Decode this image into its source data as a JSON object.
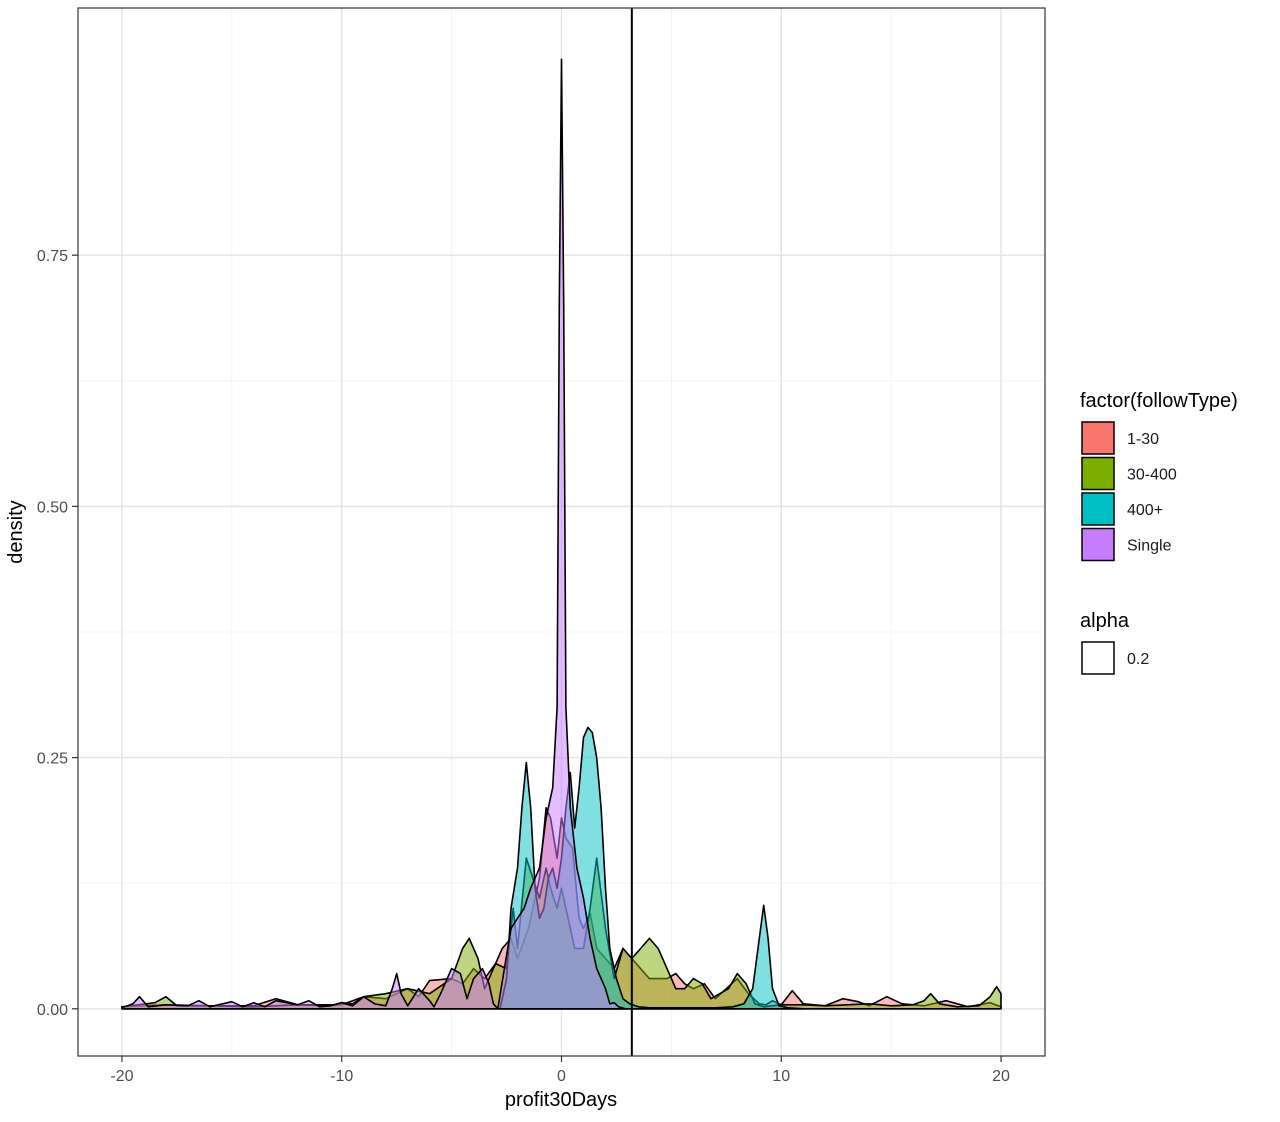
{
  "chart_data": {
    "type": "area",
    "subtype": "density",
    "title": "",
    "xlabel": "profit30Days",
    "ylabel": "density",
    "xlim": [
      -22,
      22
    ],
    "ylim": [
      -0.047,
      0.996
    ],
    "x_ticks": [
      -20,
      -10,
      0,
      10,
      20
    ],
    "x_tick_labels": [
      "-20",
      "-10",
      "0",
      "10",
      "20"
    ],
    "y_ticks": [
      0,
      0.25,
      0.5,
      0.75
    ],
    "y_tick_labels": [
      "0.00",
      "0.25",
      "0.50",
      "0.75"
    ],
    "grid": true,
    "theme": "bw",
    "vline": {
      "x": 3.2,
      "color": "#000000"
    },
    "legend": {
      "position": "right",
      "fill_title": "factor(followType)",
      "alpha_title": "alpha",
      "alpha_label": "0.2"
    },
    "series": [
      {
        "name": "1-30",
        "color": "#F8766D",
        "x": [
          -20,
          -18,
          -16,
          -14,
          -13,
          -12,
          -10,
          -9,
          -8,
          -7,
          -6.5,
          -6,
          -5,
          -4.5,
          -4,
          -3.5,
          -3,
          -2.7,
          -2.3,
          -2,
          -1.5,
          -1,
          -0.7,
          -0.5,
          -0.2,
          0,
          0.2,
          0.5,
          0.8,
          1,
          1.3,
          1.6,
          2,
          2.4,
          2.8,
          3.2,
          3.6,
          4,
          4.4,
          4.8,
          5.2,
          5.6,
          6,
          6.5,
          7,
          7.5,
          8,
          8.5,
          9,
          9.3,
          9.6,
          10,
          10.5,
          11,
          12,
          12.8,
          13.5,
          14,
          14.8,
          15.5,
          16.5,
          17.5,
          18.5,
          19.5,
          20
        ],
        "y": [
          0.002,
          0.004,
          0.003,
          0.003,
          0.01,
          0.004,
          0.004,
          0.012,
          0.01,
          0.02,
          0.012,
          0.028,
          0.03,
          0.025,
          0.04,
          0.03,
          0.045,
          0.06,
          0.07,
          0.05,
          0.08,
          0.13,
          0.2,
          0.19,
          0.15,
          0.19,
          0.17,
          0.16,
          0.09,
          0.08,
          0.095,
          0.06,
          0.05,
          0.04,
          0.06,
          0.05,
          0.04,
          0.03,
          0.03,
          0.03,
          0.035,
          0.025,
          0.02,
          0.025,
          0.01,
          0.02,
          0.03,
          0.015,
          0.005,
          0.004,
          0.008,
          0.004,
          0.018,
          0.005,
          0.003,
          0.01,
          0.007,
          0.003,
          0.012,
          0.005,
          0.003,
          0.008,
          0.002,
          0.006,
          0.002
        ]
      },
      {
        "name": "30-400",
        "color": "#7CAE00",
        "x": [
          -20,
          -18.5,
          -18,
          -17.5,
          -16,
          -14,
          -12,
          -10.5,
          -10,
          -9.5,
          -9,
          -8,
          -7,
          -6,
          -5,
          -4.5,
          -4.2,
          -3.8,
          -3.5,
          -3,
          -2.5,
          -2.2,
          -2,
          -1.6,
          -1.3,
          -1,
          -0.7,
          -0.5,
          -0.2,
          0,
          0.3,
          0.6,
          1,
          1.3,
          1.6,
          2,
          2.4,
          2.8,
          3.2,
          3.6,
          4,
          4.4,
          4.8,
          5.2,
          5.6,
          6,
          6.4,
          6.8,
          7.2,
          7.6,
          8,
          8.4,
          8.8,
          9.2,
          9.6,
          10,
          11,
          12,
          13,
          14,
          15,
          16,
          16.5,
          16.8,
          17.2,
          18,
          19,
          19.5,
          19.8,
          20
        ],
        "y": [
          0.002,
          0.006,
          0.012,
          0.003,
          0.003,
          0.002,
          0.004,
          0.003,
          0.006,
          0.005,
          0.012,
          0.015,
          0.02,
          0.015,
          0.03,
          0.06,
          0.07,
          0.05,
          0.02,
          0.045,
          0.04,
          0.1,
          0.06,
          0.15,
          0.13,
          0.11,
          0.14,
          0.12,
          0.1,
          0.12,
          0.09,
          0.06,
          0.06,
          0.1,
          0.15,
          0.08,
          0.03,
          0.06,
          0.05,
          0.06,
          0.07,
          0.06,
          0.04,
          0.02,
          0.02,
          0.03,
          0.025,
          0.01,
          0.015,
          0.02,
          0.035,
          0.025,
          0.005,
          0.002,
          0.003,
          0.004,
          0.004,
          0.003,
          0.004,
          0.005,
          0.003,
          0.004,
          0.008,
          0.015,
          0.005,
          0.002,
          0.003,
          0.012,
          0.022,
          0.015
        ]
      },
      {
        "name": "400+",
        "color": "#00BFC4",
        "x": [
          -2.8,
          -2.5,
          -2.3,
          -2,
          -1.8,
          -1.6,
          -1.4,
          -1.2,
          -1,
          -0.8,
          -0.6,
          -0.4,
          -0.2,
          0,
          0.2,
          0.4,
          0.6,
          0.8,
          1,
          1.2,
          1.4,
          1.6,
          1.8,
          2,
          2.2,
          2.5,
          2.8,
          3.1,
          3.5,
          4,
          5,
          6,
          7,
          7.8,
          8.3,
          8.7,
          9,
          9.2,
          9.4,
          9.6,
          9.9,
          10.3,
          11
        ],
        "y": [
          0,
          0.03,
          0.1,
          0.14,
          0.2,
          0.245,
          0.2,
          0.12,
          0.09,
          0.1,
          0.13,
          0.14,
          0.12,
          0.15,
          0.2,
          0.235,
          0.18,
          0.22,
          0.27,
          0.28,
          0.275,
          0.25,
          0.2,
          0.12,
          0.06,
          0.03,
          0.01,
          0.005,
          0.002,
          0.001,
          0.001,
          0.001,
          0.001,
          0.002,
          0.005,
          0.02,
          0.07,
          0.103,
          0.07,
          0.02,
          0.003,
          0.001,
          0
        ]
      },
      {
        "name": "Single",
        "color": "#C77CFF",
        "x": [
          -20,
          -19.5,
          -19.2,
          -18.8,
          -18,
          -17,
          -16.5,
          -16,
          -15,
          -14.5,
          -14,
          -13.5,
          -13,
          -12,
          -11.5,
          -11,
          -10.5,
          -10,
          -9.5,
          -9,
          -8.5,
          -8,
          -7.7,
          -7.5,
          -7.3,
          -7,
          -6.5,
          -6,
          -5.8,
          -5.5,
          -5,
          -4.6,
          -4.3,
          -4,
          -3.6,
          -3.3,
          -3.1,
          -2.9,
          -2.6,
          -2.3,
          -2,
          -1.7,
          -1.4,
          -1.2,
          -1,
          -0.7,
          -0.4,
          -0.2,
          -0.1,
          0,
          0.1,
          0.2,
          0.4,
          0.7,
          1,
          1.3,
          1.6,
          2,
          2.2,
          2.4,
          2.6,
          2.9
        ],
        "y": [
          0.001,
          0.005,
          0.012,
          0.002,
          0.004,
          0.003,
          0.008,
          0.002,
          0.007,
          0.002,
          0.006,
          0.002,
          0.008,
          0.004,
          0.008,
          0.002,
          0.003,
          0.006,
          0.003,
          0.012,
          0.005,
          0.003,
          0.02,
          0.035,
          0.015,
          0.003,
          0.02,
          0.008,
          0.002,
          0.015,
          0.04,
          0.035,
          0.01,
          0.03,
          0.04,
          0.025,
          0.005,
          0,
          0.04,
          0.08,
          0.09,
          0.1,
          0.12,
          0.13,
          0.14,
          0.19,
          0.22,
          0.3,
          0.7,
          0.945,
          0.7,
          0.3,
          0.2,
          0.14,
          0.11,
          0.07,
          0.04,
          0.02,
          0.005,
          0.006,
          0.002,
          0
        ]
      }
    ]
  }
}
